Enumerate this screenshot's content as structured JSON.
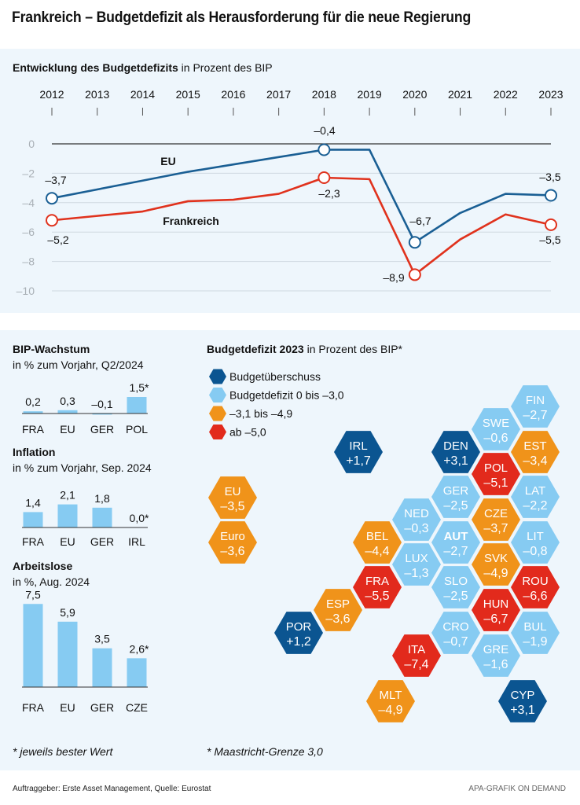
{
  "title": "Frankreich – Budgetdefizit als Herausforderung für die neue Regierung",
  "colors": {
    "eu_line": "#1a5f94",
    "france_line": "#e0321d",
    "surplus": "#0b5591",
    "deficit_low": "#86cbf2",
    "deficit_mid": "#f0931a",
    "deficit_high": "#e22a1c",
    "bar": "#86cbf2",
    "panel_bg": "#eef6fc"
  },
  "line_chart": {
    "subtitle_bold": "Entwicklung des Budgetdefizits",
    "subtitle_rest": " in Prozent des BIP"
  },
  "chart_data": [
    {
      "type": "line",
      "title": "Entwicklung des Budgetdefizits in Prozent des BIP",
      "x": [
        2012,
        2013,
        2014,
        2015,
        2016,
        2017,
        2018,
        2019,
        2020,
        2021,
        2022,
        2023
      ],
      "x_tick_labels": [
        "2012",
        "2013",
        "2014",
        "2015",
        "2016",
        "2017",
        "2018",
        "2019",
        "2020",
        "2021",
        "2022",
        "2023"
      ],
      "y_ticks": [
        0,
        -2,
        -4,
        -6,
        -8,
        -10
      ],
      "y_tick_labels": [
        "0",
        "–2",
        "–4",
        "–6",
        "–8",
        "–10"
      ],
      "ylim": [
        -10,
        0
      ],
      "grid": true,
      "series": [
        {
          "name": "EU",
          "label": "EU",
          "color": "#1a5f94",
          "values": [
            -3.7,
            -3.1,
            -2.5,
            -1.9,
            -1.4,
            -0.9,
            -0.4,
            -0.4,
            -6.7,
            -4.7,
            -3.4,
            -3.5
          ]
        },
        {
          "name": "Frankreich",
          "label": "Frankreich",
          "color": "#e0321d",
          "values": [
            -5.2,
            -4.9,
            -4.6,
            -3.9,
            -3.8,
            -3.4,
            -2.3,
            -2.4,
            -8.9,
            -6.5,
            -4.8,
            -5.5
          ]
        }
      ],
      "annotations": [
        {
          "series": "EU",
          "x": 2012,
          "text": "–3,7"
        },
        {
          "series": "EU",
          "x": 2018,
          "text": "–0,4"
        },
        {
          "series": "EU",
          "x": 2020,
          "text": "–6,7"
        },
        {
          "series": "EU",
          "x": 2023,
          "text": "–3,5"
        },
        {
          "series": "Frankreich",
          "x": 2012,
          "text": "–5,2"
        },
        {
          "series": "Frankreich",
          "x": 2018,
          "text": "–2,3"
        },
        {
          "series": "Frankreich",
          "x": 2020,
          "text": "–8,9"
        },
        {
          "series": "Frankreich",
          "x": 2023,
          "text": "–5,5"
        }
      ]
    },
    {
      "type": "bar",
      "title": "BIP-Wachstum",
      "subtitle": "in % zum Vorjahr, Q2/2024",
      "categories": [
        "FRA",
        "EU",
        "GER",
        "POL"
      ],
      "values": [
        0.2,
        0.3,
        -0.1,
        1.5
      ],
      "value_labels": [
        "0,2",
        "0,3",
        "–0,1",
        "1,5*"
      ]
    },
    {
      "type": "bar",
      "title": "Inflation",
      "subtitle": "in % zum Vorjahr, Sep. 2024",
      "categories": [
        "FRA",
        "EU",
        "GER",
        "IRL"
      ],
      "values": [
        1.4,
        2.1,
        1.8,
        0.0
      ],
      "value_labels": [
        "1,4",
        "2,1",
        "1,8",
        "0,0*"
      ]
    },
    {
      "type": "bar",
      "title": "Arbeitslose",
      "subtitle": "in %, Aug. 2024",
      "categories": [
        "FRA",
        "EU",
        "GER",
        "CZE"
      ],
      "values": [
        7.5,
        5.9,
        3.5,
        2.6
      ],
      "value_labels": [
        "7,5",
        "5,9",
        "3,5",
        "2,6*"
      ]
    },
    {
      "type": "heatmap",
      "title": "Budgetdefizit 2023 in Prozent des BIP*",
      "legend": [
        {
          "class": "surplus",
          "label": "Budgetüberschuss"
        },
        {
          "class": "low",
          "label": "Budgetdefizit 0 bis –3,0"
        },
        {
          "class": "mid",
          "label": "–3,1 bis –4,9"
        },
        {
          "class": "high",
          "label": "ab –5,0"
        }
      ],
      "cells": [
        {
          "code": "FIN",
          "value": -2.7,
          "label": "–2,7",
          "class": "low"
        },
        {
          "code": "SWE",
          "value": -0.6,
          "label": "–0,6",
          "class": "low"
        },
        {
          "code": "DEN",
          "value": 3.1,
          "label": "+3,1",
          "class": "surplus"
        },
        {
          "code": "EST",
          "value": -3.4,
          "label": "–3,4",
          "class": "mid"
        },
        {
          "code": "IRL",
          "value": 1.7,
          "label": "+1,7",
          "class": "surplus"
        },
        {
          "code": "POL",
          "value": -5.1,
          "label": "–5,1",
          "class": "high"
        },
        {
          "code": "GER",
          "value": -2.5,
          "label": "–2,5",
          "class": "low"
        },
        {
          "code": "LAT",
          "value": -2.2,
          "label": "–2,2",
          "class": "low"
        },
        {
          "code": "NED",
          "value": -0.3,
          "label": "–0,3",
          "class": "low"
        },
        {
          "code": "CZE",
          "value": -3.7,
          "label": "–3,7",
          "class": "mid"
        },
        {
          "code": "BEL",
          "value": -4.4,
          "label": "–4,4",
          "class": "mid"
        },
        {
          "code": "AUT",
          "value": -2.7,
          "label": "–2,7",
          "class": "low",
          "bold": true
        },
        {
          "code": "LIT",
          "value": -0.8,
          "label": "–0,8",
          "class": "low"
        },
        {
          "code": "LUX",
          "value": -1.3,
          "label": "–1,3",
          "class": "low"
        },
        {
          "code": "SVK",
          "value": -4.9,
          "label": "–4,9",
          "class": "mid"
        },
        {
          "code": "FRA",
          "value": -5.5,
          "label": "–5,5",
          "class": "high"
        },
        {
          "code": "SLO",
          "value": -2.5,
          "label": "–2,5",
          "class": "low"
        },
        {
          "code": "ROU",
          "value": -6.6,
          "label": "–6,6",
          "class": "high"
        },
        {
          "code": "ESP",
          "value": -3.6,
          "label": "–3,6",
          "class": "mid"
        },
        {
          "code": "HUN",
          "value": -6.7,
          "label": "–6,7",
          "class": "high"
        },
        {
          "code": "POR",
          "value": 1.2,
          "label": "+1,2",
          "class": "surplus"
        },
        {
          "code": "CRO",
          "value": -0.7,
          "label": "–0,7",
          "class": "low"
        },
        {
          "code": "BUL",
          "value": -1.9,
          "label": "–1,9",
          "class": "low"
        },
        {
          "code": "ITA",
          "value": -7.4,
          "label": "–7,4",
          "class": "high"
        },
        {
          "code": "GRE",
          "value": -1.6,
          "label": "–1,6",
          "class": "low"
        },
        {
          "code": "MLT",
          "value": -4.9,
          "label": "–4,9",
          "class": "mid"
        },
        {
          "code": "CYP",
          "value": 3.1,
          "label": "+3,1",
          "class": "surplus"
        },
        {
          "code": "EU",
          "value": -3.5,
          "label": "–3,5",
          "class": "mid"
        },
        {
          "code": "Euro",
          "value": -3.6,
          "label": "–3,6",
          "class": "mid"
        }
      ]
    }
  ],
  "hexmap": {
    "subtitle_bold": "Budgetdefizit 2023",
    "subtitle_rest": " in Prozent des BIP*"
  },
  "notes": {
    "left": "* jeweils bester Wert",
    "right": "* Maastricht-Grenze 3,0"
  },
  "footer": {
    "source": "Auftraggeber: Erste Asset Management, Quelle: Eurostat",
    "credit": "APA-GRAFIK ON DEMAND"
  }
}
